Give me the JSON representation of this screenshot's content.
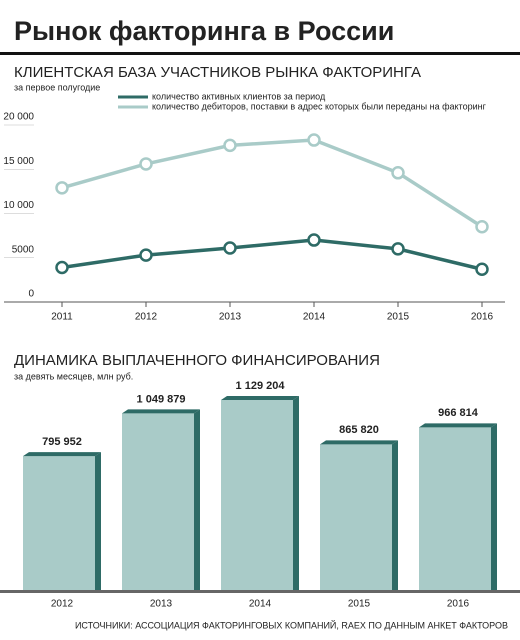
{
  "title": "Рынок факторинга в России",
  "source": "ИСТОЧНИКИ: АССОЦИАЦИЯ ФАКТОРИНГОВЫХ КОМПАНИЙ, RAEX ПО ДАННЫМ АНКЕТ ФАКТОРОВ",
  "chart_data": [
    {
      "type": "line",
      "title": "КЛИЕНТСКАЯ БАЗА УЧАСТНИКОВ РЫНКА ФАКТОРИНГА",
      "subtitle": "за первое полугодие",
      "categories": [
        "2011",
        "2012",
        "2013",
        "2014",
        "2015",
        "2016"
      ],
      "series": [
        {
          "name": "количество активных клиентов за период",
          "color": "#2e6b66",
          "values": [
            3900,
            5300,
            6100,
            7000,
            6000,
            3700
          ]
        },
        {
          "name": "количество дебиторов, поставки в адрес которых были переданы на факторинг",
          "color": "#a9cbc8",
          "values": [
            12900,
            15600,
            17700,
            18300,
            14600,
            8500
          ]
        }
      ],
      "ylim": [
        0,
        20000
      ],
      "yticks": [
        0,
        5000,
        {
          "value": 10000,
          "label": "10 000"
        },
        {
          "value": 15000,
          "label": "15 000"
        },
        {
          "value": 20000,
          "label": "20 000"
        }
      ],
      "legend": "top"
    },
    {
      "type": "bar",
      "title": "ДИНАМИКА ВЫПЛАЧЕННОГО ФИНАНСИРОВАНИЯ",
      "subtitle": "за девять месяцев, млн руб.",
      "categories": [
        "2012",
        "2013",
        "2014",
        "2015",
        "2016"
      ],
      "values": [
        795952,
        1049879,
        1129204,
        865820,
        966814
      ],
      "value_labels": [
        "795 952",
        "1 049 879",
        "1 129 204",
        "865 820",
        "966 814"
      ],
      "color": "#a9cbc8",
      "side_color": "#2e6b66"
    }
  ]
}
